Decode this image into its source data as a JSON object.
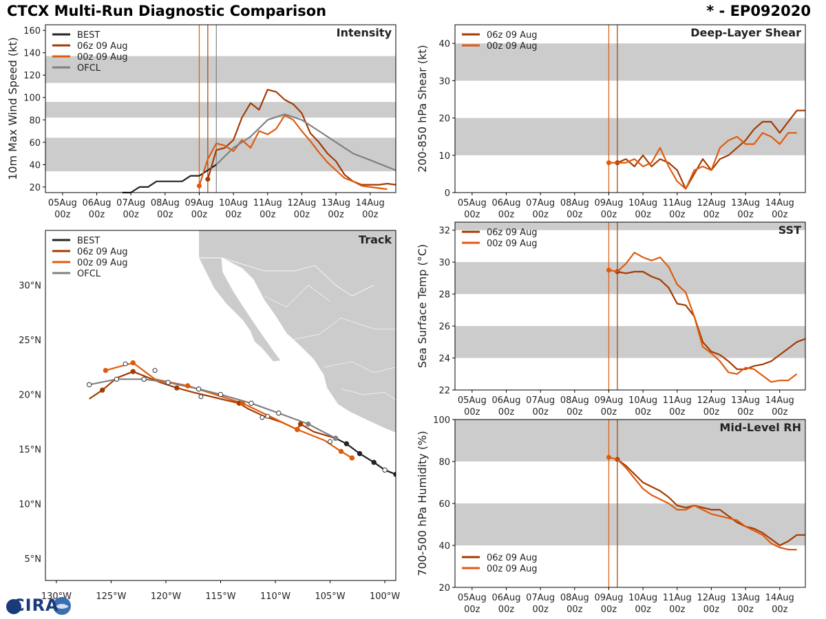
{
  "header": {
    "title": "CTCX Multi-Run Diagnostic Comparison",
    "storm": "* - EP092020"
  },
  "logo": {
    "text": "CIRA"
  },
  "colors": {
    "best": "#222222",
    "run06": "#a33a00",
    "run00": "#e05a0c",
    "ofcl": "#808080",
    "band": "#cccccc"
  },
  "time_ticks": [
    {
      "day": "05Aug",
      "hour": "00z",
      "t": 0
    },
    {
      "day": "06Aug",
      "hour": "00z",
      "t": 24
    },
    {
      "day": "07Aug",
      "hour": "00z",
      "t": 48
    },
    {
      "day": "08Aug",
      "hour": "00z",
      "t": 72
    },
    {
      "day": "09Aug",
      "hour": "00z",
      "t": 96
    },
    {
      "day": "10Aug",
      "hour": "00z",
      "t": 120
    },
    {
      "day": "11Aug",
      "hour": "00z",
      "t": 144
    },
    {
      "day": "12Aug",
      "hour": "00z",
      "t": 168
    },
    {
      "day": "13Aug",
      "hour": "00z",
      "t": 192
    },
    {
      "day": "14Aug",
      "hour": "00z",
      "t": 216
    }
  ],
  "chart_data": [
    {
      "type": "line",
      "id": "intensity",
      "title": "Intensity",
      "ylabel": "10m Max Wind Speed (kt)",
      "xlim": [
        -12,
        234
      ],
      "ylim": [
        15,
        165
      ],
      "yticks": [
        20,
        40,
        60,
        80,
        100,
        120,
        140,
        160
      ],
      "bands": [
        [
          34,
          64
        ],
        [
          82,
          96
        ],
        [
          113,
          137
        ]
      ],
      "init_lines": [
        {
          "t": 96,
          "color": "run00"
        },
        {
          "t": 102,
          "color": "run06"
        },
        {
          "t": 108,
          "color": "ofcl"
        }
      ],
      "legend": [
        "BEST",
        "06z 09 Aug",
        "00z 09 Aug",
        "OFCL"
      ],
      "series": [
        {
          "name": "BEST",
          "color": "best",
          "x": [
            42,
            48,
            54,
            60,
            66,
            72,
            78,
            84,
            90,
            96,
            102,
            108
          ],
          "y": [
            15,
            15,
            20,
            20,
            25,
            25,
            25,
            25,
            30,
            30,
            35,
            40
          ]
        },
        {
          "name": "06z 09 Aug",
          "color": "run06",
          "start_marker": true,
          "x": [
            102,
            108,
            114,
            120,
            126,
            132,
            138,
            144,
            150,
            156,
            162,
            168,
            174,
            180,
            186,
            192,
            198,
            204,
            210,
            216,
            222,
            228,
            234
          ],
          "y": [
            27,
            53,
            55,
            62,
            82,
            95,
            89,
            107,
            105,
            98,
            94,
            86,
            68,
            60,
            50,
            43,
            31,
            25,
            22,
            22,
            22,
            23,
            22
          ]
        },
        {
          "name": "00z 09 Aug",
          "color": "run00",
          "start_marker": true,
          "x": [
            96,
            102,
            108,
            114,
            120,
            126,
            132,
            138,
            144,
            150,
            156,
            162,
            168,
            174,
            180,
            186,
            192,
            198,
            204,
            210,
            216,
            222,
            228
          ],
          "y": [
            21,
            45,
            59,
            57,
            52,
            62,
            55,
            70,
            67,
            72,
            84,
            80,
            70,
            61,
            51,
            42,
            35,
            28,
            25,
            21,
            20,
            19,
            18
          ]
        },
        {
          "name": "OFCL",
          "color": "ofcl",
          "x": [
            108,
            120,
            132,
            144,
            156,
            168,
            180,
            192,
            204,
            216,
            234
          ],
          "y": [
            40,
            55,
            65,
            80,
            85,
            80,
            70,
            60,
            50,
            44,
            35
          ]
        }
      ]
    },
    {
      "type": "line",
      "id": "shear",
      "title": "Deep-Layer Shear",
      "ylabel": "200-850 hPa Shear (kt)",
      "xlim": [
        -12,
        234
      ],
      "ylim": [
        0,
        45
      ],
      "yticks": [
        0,
        10,
        20,
        30,
        40
      ],
      "bands": [
        [
          10,
          20
        ],
        [
          30,
          40
        ]
      ],
      "init_lines": [
        {
          "t": 96,
          "color": "run00"
        },
        {
          "t": 102,
          "color": "run06"
        }
      ],
      "legend": [
        "06z 09 Aug",
        "00z 09 Aug"
      ],
      "series": [
        {
          "name": "06z 09 Aug",
          "color": "run06",
          "start_marker": true,
          "x": [
            102,
            108,
            114,
            120,
            126,
            132,
            138,
            144,
            150,
            156,
            162,
            168,
            174,
            180,
            186,
            192,
            198,
            204,
            210,
            216,
            222,
            228,
            234
          ],
          "y": [
            8,
            9,
            7,
            10,
            7,
            9,
            8,
            6,
            1,
            5,
            9,
            6,
            9,
            10,
            12,
            14,
            17,
            19,
            19,
            16,
            19,
            22,
            22
          ]
        },
        {
          "name": "00z 09 Aug",
          "color": "run00",
          "start_marker": true,
          "x": [
            96,
            102,
            108,
            114,
            120,
            126,
            132,
            138,
            144,
            150,
            156,
            162,
            168,
            174,
            180,
            186,
            192,
            198,
            204,
            210,
            216,
            222,
            228
          ],
          "y": [
            8,
            8,
            8,
            9,
            7,
            8,
            12,
            7,
            3,
            1,
            6,
            7,
            6,
            12,
            14,
            15,
            13,
            13,
            16,
            15,
            13,
            16,
            16
          ]
        }
      ]
    },
    {
      "type": "line",
      "id": "sst",
      "title": "SST",
      "ylabel": "Sea Surface Temp (°C)",
      "xlim": [
        -12,
        234
      ],
      "ylim": [
        22,
        32.5
      ],
      "yticks": [
        22,
        24,
        26,
        28,
        30,
        32
      ],
      "bands": [
        [
          24,
          26
        ],
        [
          28,
          30
        ],
        [
          32,
          32.5
        ]
      ],
      "init_lines": [
        {
          "t": 96,
          "color": "run00"
        },
        {
          "t": 102,
          "color": "run06"
        }
      ],
      "legend": [
        "06z 09 Aug",
        "00z 09 Aug"
      ],
      "series": [
        {
          "name": "06z 09 Aug",
          "color": "run06",
          "start_marker": true,
          "x": [
            102,
            108,
            114,
            120,
            126,
            132,
            138,
            144,
            150,
            156,
            162,
            168,
            174,
            180,
            186,
            192,
            198,
            204,
            210,
            216,
            222,
            228,
            234
          ],
          "y": [
            29.4,
            29.3,
            29.4,
            29.4,
            29.1,
            28.9,
            28.4,
            27.4,
            27.3,
            26.6,
            25.0,
            24.4,
            24.2,
            23.8,
            23.3,
            23.3,
            23.5,
            23.6,
            23.8,
            24.2,
            24.6,
            25.0,
            25.2
          ]
        },
        {
          "name": "00z 09 Aug",
          "color": "run00",
          "start_marker": true,
          "x": [
            96,
            102,
            108,
            114,
            120,
            126,
            132,
            138,
            144,
            150,
            156,
            162,
            168,
            174,
            180,
            186,
            192,
            198,
            204,
            210,
            216,
            222,
            228
          ],
          "y": [
            29.5,
            29.4,
            29.9,
            30.6,
            30.3,
            30.1,
            30.3,
            29.7,
            28.6,
            28.1,
            26.6,
            24.7,
            24.3,
            23.8,
            23.1,
            23.0,
            23.4,
            23.3,
            22.9,
            22.5,
            22.6,
            22.6,
            23.0
          ]
        }
      ]
    },
    {
      "type": "line",
      "id": "rh",
      "title": "Mid-Level RH",
      "ylabel": "700-500 hPa Humidity (%)",
      "xlim": [
        -12,
        234
      ],
      "ylim": [
        20,
        100
      ],
      "yticks": [
        20,
        40,
        60,
        80,
        100
      ],
      "bands": [
        [
          40,
          60
        ],
        [
          80,
          100
        ]
      ],
      "init_lines": [
        {
          "t": 96,
          "color": "run00"
        },
        {
          "t": 102,
          "color": "run06"
        }
      ],
      "legend": [
        "06z 09 Aug",
        "00z 09 Aug"
      ],
      "series": [
        {
          "name": "06z 09 Aug",
          "color": "run06",
          "start_marker": true,
          "x": [
            102,
            108,
            114,
            120,
            126,
            132,
            138,
            144,
            150,
            156,
            162,
            168,
            174,
            180,
            186,
            192,
            198,
            204,
            210,
            216,
            222,
            228,
            234
          ],
          "y": [
            81,
            78,
            74,
            70,
            68,
            66,
            63,
            59,
            58,
            59,
            58,
            57,
            57,
            54,
            51,
            49,
            48,
            46,
            43,
            40,
            42,
            45,
            45
          ]
        },
        {
          "name": "00z 09 Aug",
          "color": "run00",
          "start_marker": true,
          "x": [
            96,
            102,
            108,
            114,
            120,
            126,
            132,
            138,
            144,
            150,
            156,
            162,
            168,
            174,
            180,
            186,
            192,
            198,
            204,
            210,
            216,
            222,
            228
          ],
          "y": [
            82,
            81,
            77,
            72,
            67,
            64,
            62,
            60,
            57,
            57,
            59,
            57,
            55,
            54,
            53,
            52,
            49,
            47,
            45,
            41,
            39,
            38,
            38
          ]
        }
      ]
    },
    {
      "type": "scatter",
      "id": "track",
      "title": "Track",
      "xlim": [
        -131,
        -99
      ],
      "ylim": [
        3,
        35
      ],
      "xticks": [
        {
          "v": -130,
          "label": "130°W"
        },
        {
          "v": -125,
          "label": "125°W"
        },
        {
          "v": -120,
          "label": "120°W"
        },
        {
          "v": -115,
          "label": "115°W"
        },
        {
          "v": -110,
          "label": "110°W"
        },
        {
          "v": -105,
          "label": "105°W"
        },
        {
          "v": -100,
          "label": "100°W"
        }
      ],
      "yticks": [
        {
          "v": 5,
          "label": "5°N"
        },
        {
          "v": 10,
          "label": "10°N"
        },
        {
          "v": 15,
          "label": "15°N"
        },
        {
          "v": 20,
          "label": "20°N"
        },
        {
          "v": 25,
          "label": "25°N"
        },
        {
          "v": 30,
          "label": "30°N"
        }
      ],
      "legend": [
        "BEST",
        "06z 09 Aug",
        "00z 09 Aug",
        "OFCL"
      ],
      "series": [
        {
          "name": "BEST",
          "color": "best",
          "lon": [
            -99,
            -100.0,
            -101.0,
            -102.3,
            -103.5,
            -104.5
          ],
          "lat": [
            12.7,
            13.1,
            13.8,
            14.6,
            15.5,
            16.0
          ],
          "open": [
            false,
            true,
            false,
            false,
            false,
            false
          ]
        },
        {
          "name": "06z 09 Aug",
          "color": "run06",
          "lon": [
            -104.5,
            -106.5,
            -107.7,
            -108.0,
            -109.5,
            -111.0,
            -112.5,
            -113.3,
            -115.0,
            -117.5,
            -119.0,
            -120.5,
            -123.0,
            -124.5,
            -125.8,
            -127.0
          ],
          "lat": [
            16.0,
            16.6,
            17.3,
            16.8,
            17.5,
            18.0,
            18.7,
            19.2,
            19.6,
            20.2,
            20.6,
            21.1,
            22.1,
            21.5,
            20.4,
            19.6
          ],
          "filled": [
            false,
            false,
            true,
            true,
            false,
            false,
            false,
            true,
            false,
            false,
            true,
            false,
            true,
            false,
            true,
            false
          ]
        },
        {
          "name": "00z 09 Aug",
          "color": "run00",
          "lon": [
            -103.0,
            -104.0,
            -105.5,
            -108.0,
            -110.5,
            -113.0,
            -115.5,
            -118.0,
            -121.0,
            -123.0,
            -125.5
          ],
          "lat": [
            14.2,
            14.8,
            15.8,
            16.8,
            18.0,
            19.2,
            20.0,
            20.8,
            21.4,
            22.9,
            22.2
          ],
          "filled": [
            true,
            true,
            false,
            true,
            false,
            true,
            false,
            true,
            false,
            true,
            true
          ]
        },
        {
          "name": "OFCL",
          "color": "ofcl",
          "lon": [
            -104.5,
            -107.0,
            -109.7,
            -112.2,
            -115.0,
            -117.0,
            -119.8,
            -122.0,
            -124.5,
            -127.0
          ],
          "lat": [
            16.0,
            17.3,
            18.3,
            19.2,
            20.0,
            20.5,
            21.1,
            21.4,
            21.4,
            20.9
          ],
          "open": [
            false,
            false,
            true,
            true,
            true,
            true,
            true,
            true,
            true,
            true
          ]
        },
        {
          "name": "BEST-open",
          "color": "best",
          "lon": [
            -105.0,
            -110.7,
            -111.2,
            -116.8,
            -121.0,
            -123.7
          ],
          "lat": [
            15.7,
            18.0,
            17.9,
            19.8,
            22.2,
            22.8
          ],
          "open": [
            true,
            true,
            true,
            true,
            true,
            true
          ]
        }
      ]
    }
  ]
}
